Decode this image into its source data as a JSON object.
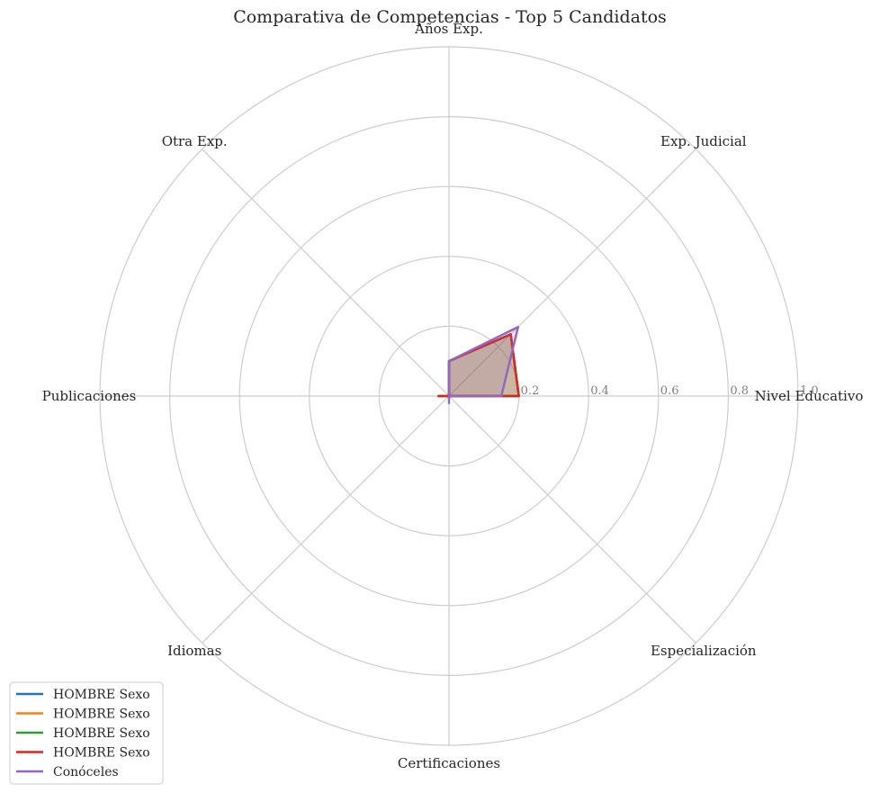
{
  "chart_data": {
    "type": "radar",
    "title": "Comparativa de Competencias - Top 5 Candidatos",
    "axes": [
      "Nivel Educativo",
      "Exp. Judicial",
      "Años Exp.",
      "Otra Exp.",
      "Publicaciones",
      "Idiomas",
      "Certificaciones",
      "Especialización"
    ],
    "rlim": [
      0,
      1.0
    ],
    "rticks": [
      0.2,
      0.4,
      0.6,
      0.8,
      1.0
    ],
    "rtick_labels": [
      "0.2",
      "0.4",
      "0.6",
      "0.8",
      "1.0"
    ],
    "grid": true,
    "legend_position": "lower-left",
    "series": [
      {
        "name": "HOMBRE Sexo",
        "color": "#1f77b4",
        "values": [
          0.2,
          0.25,
          0.1,
          0.0,
          0.03,
          0.0,
          0.0,
          0.0
        ]
      },
      {
        "name": "HOMBRE Sexo",
        "color": "#ff7f0e",
        "values": [
          0.2,
          0.25,
          0.1,
          0.0,
          0.03,
          0.0,
          0.0,
          0.0
        ]
      },
      {
        "name": "HOMBRE Sexo",
        "color": "#2ca02c",
        "values": [
          0.2,
          0.25,
          0.1,
          0.0,
          0.03,
          0.0,
          0.0,
          0.0
        ]
      },
      {
        "name": "HOMBRE Sexo",
        "color": "#d62728",
        "values": [
          0.2,
          0.25,
          0.1,
          0.0,
          0.03,
          0.0,
          0.0,
          0.0
        ]
      },
      {
        "name": "Conóceles",
        "color": "#9467bd",
        "values": [
          0.15,
          0.28,
          0.1,
          0.0,
          0.0,
          0.0,
          0.02,
          0.0
        ]
      }
    ]
  }
}
